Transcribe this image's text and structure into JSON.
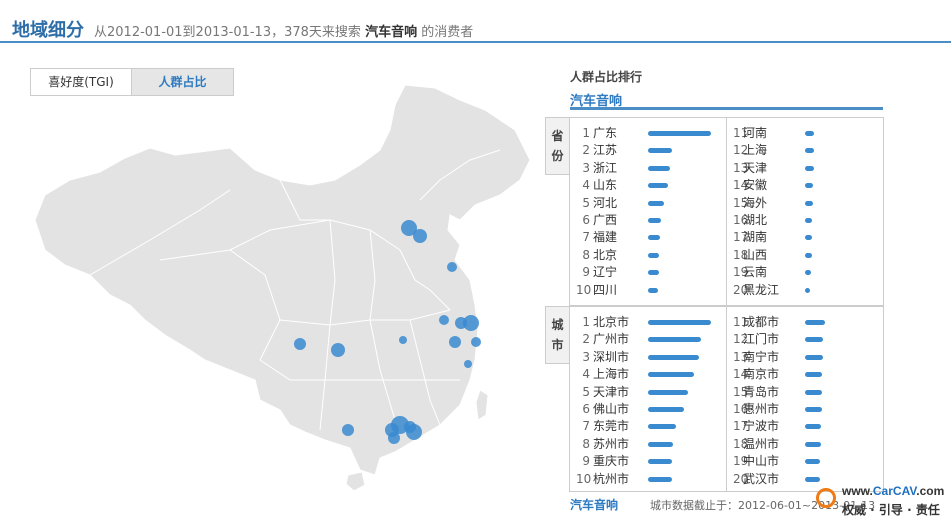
{
  "header": {
    "title": "地域细分",
    "desc_prefix": "从2012-01-01到2013-01-13，378天来搜索",
    "keyword": "汽车音响",
    "desc_suffix": "的消费者"
  },
  "tabs": [
    {
      "label": "喜好度(TGI)",
      "active": false
    },
    {
      "label": "人群占比",
      "active": true
    }
  ],
  "ranking": {
    "title": "人群占比排行",
    "term": "汽车音响",
    "province_tab": "省份",
    "city_tab": "城市",
    "provinces": [
      {
        "rank": "1",
        "name": "广东",
        "share": 0.95
      },
      {
        "rank": "2",
        "name": "江苏",
        "share": 0.36
      },
      {
        "rank": "3",
        "name": "浙江",
        "share": 0.33
      },
      {
        "rank": "4",
        "name": "山东",
        "share": 0.3
      },
      {
        "rank": "5",
        "name": "河北",
        "share": 0.24
      },
      {
        "rank": "6",
        "name": "广西",
        "share": 0.2
      },
      {
        "rank": "7",
        "name": "福建",
        "share": 0.18
      },
      {
        "rank": "8",
        "name": "北京",
        "share": 0.17
      },
      {
        "rank": "9",
        "name": "辽宁",
        "share": 0.16
      },
      {
        "rank": "10",
        "name": "四川",
        "share": 0.15
      },
      {
        "rank": "11",
        "name": "河南",
        "share": 0.14
      },
      {
        "rank": "12",
        "name": "上海",
        "share": 0.13
      },
      {
        "rank": "13",
        "name": "天津",
        "share": 0.13
      },
      {
        "rank": "14",
        "name": "安徽",
        "share": 0.12
      },
      {
        "rank": "15",
        "name": "海外",
        "share": 0.12
      },
      {
        "rank": "16",
        "name": "湖北",
        "share": 0.11
      },
      {
        "rank": "17",
        "name": "湖南",
        "share": 0.11
      },
      {
        "rank": "18",
        "name": "山西",
        "share": 0.1
      },
      {
        "rank": "19",
        "name": "云南",
        "share": 0.09
      },
      {
        "rank": "20",
        "name": "黑龙江",
        "share": 0.08
      }
    ],
    "cities": [
      {
        "rank": "1",
        "name": "北京市",
        "share": 0.95
      },
      {
        "rank": "2",
        "name": "广州市",
        "share": 0.8
      },
      {
        "rank": "3",
        "name": "深圳市",
        "share": 0.78
      },
      {
        "rank": "4",
        "name": "上海市",
        "share": 0.7
      },
      {
        "rank": "5",
        "name": "天津市",
        "share": 0.6
      },
      {
        "rank": "6",
        "name": "佛山市",
        "share": 0.55
      },
      {
        "rank": "7",
        "name": "东莞市",
        "share": 0.42
      },
      {
        "rank": "8",
        "name": "苏州市",
        "share": 0.38
      },
      {
        "rank": "9",
        "name": "重庆市",
        "share": 0.36
      },
      {
        "rank": "10",
        "name": "杭州市",
        "share": 0.36
      },
      {
        "rank": "11",
        "name": "成都市",
        "share": 0.3
      },
      {
        "rank": "12",
        "name": "江门市",
        "share": 0.28
      },
      {
        "rank": "13",
        "name": "南宁市",
        "share": 0.27
      },
      {
        "rank": "14",
        "name": "南京市",
        "share": 0.26
      },
      {
        "rank": "15",
        "name": "青岛市",
        "share": 0.26
      },
      {
        "rank": "16",
        "name": "惠州市",
        "share": 0.25
      },
      {
        "rank": "17",
        "name": "宁波市",
        "share": 0.24
      },
      {
        "rank": "18",
        "name": "温州市",
        "share": 0.24
      },
      {
        "rank": "19",
        "name": "中山市",
        "share": 0.23
      },
      {
        "rank": "20",
        "name": "武汉市",
        "share": 0.22
      }
    ]
  },
  "footer": {
    "term": "汽车音响",
    "note": "城市数据截止于：2012-06-01~2013-01-13"
  },
  "watermark": {
    "url_prefix": "www.",
    "url_brand": "CarCAV",
    "url_suffix": ".com",
    "slogan": "权威 · 引导 · 责任"
  },
  "colors": {
    "accent": "#3a8ad0",
    "title": "#2e6ea8",
    "map_fill": "#e3e3e3",
    "bubble": "#3a8ad0"
  }
}
